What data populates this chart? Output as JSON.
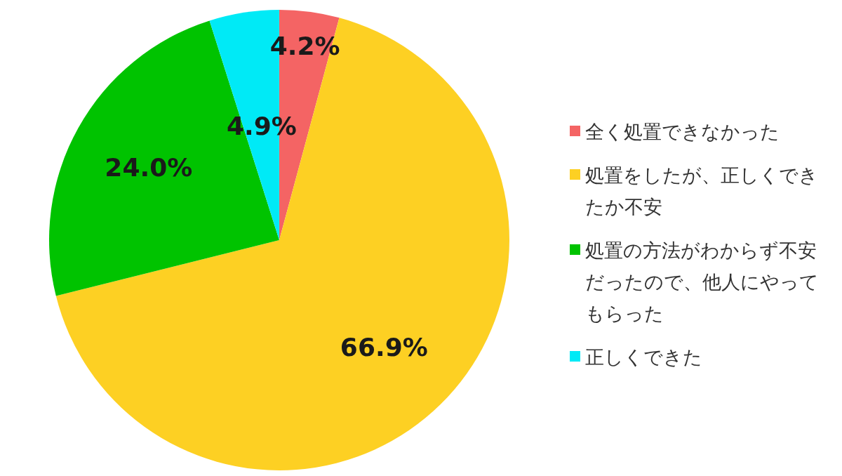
{
  "chart_data": {
    "type": "pie",
    "categories": [
      "全く処置できなかった",
      "処置をしたが、正しくできたか不安",
      "処置の方法がわからず不安だったので、他人にやってもらった",
      "正しくできた"
    ],
    "values": [
      4.2,
      66.9,
      24.0,
      4.9
    ],
    "colors": [
      "#f46464",
      "#fdd023",
      "#00c300",
      "#00eaf6"
    ],
    "value_labels": [
      "4.2%",
      "66.9%",
      "24.0%",
      "4.9%"
    ],
    "legend": "right"
  }
}
